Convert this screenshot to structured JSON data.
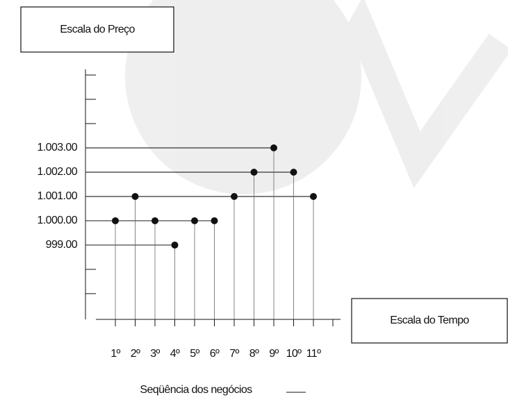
{
  "chart_data": {
    "type": "scatter",
    "y_label": "Escala do Preço",
    "x_label": "Escala do Tempo",
    "caption": "Seqüência dos negócios",
    "categories": [
      "1º",
      "2º",
      "3º",
      "4º",
      "5º",
      "6º",
      "7º",
      "8º",
      "9º",
      "10º",
      "11º"
    ],
    "values": [
      1000,
      1001,
      1000,
      999,
      1000,
      1000,
      1001,
      1002,
      1003,
      1002,
      1001
    ],
    "color": "#111111",
    "ylim": [
      995.94,
      1006.23
    ],
    "yticks": [
      {
        "value": 1003,
        "label": "1.003.00"
      },
      {
        "value": 1002,
        "label": "1.002.00"
      },
      {
        "value": 1001,
        "label": "1.001.00"
      },
      {
        "value": 1000,
        "label": "1.000.00"
      },
      {
        "value": 999,
        "label": "999.00"
      }
    ],
    "minor_yticks": [
      1006,
      1005,
      1004,
      998,
      997
    ]
  }
}
